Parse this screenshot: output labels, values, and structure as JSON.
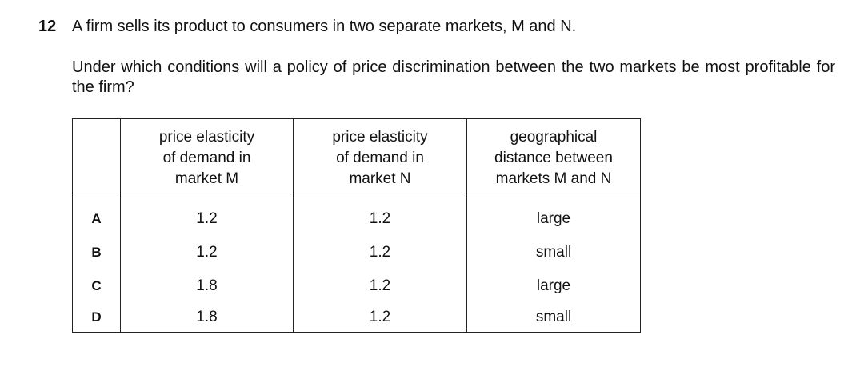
{
  "question": {
    "number": "12",
    "stem": "A firm sells its product to consumers in two separate markets, M and N.",
    "prompt": "Under which conditions will a policy of price discrimination between the two markets be most profitable for the firm?"
  },
  "table": {
    "headers": [
      [
        "price elasticity",
        "of demand in",
        "market M"
      ],
      [
        "price elasticity",
        "of demand in",
        "market N"
      ],
      [
        "geographical",
        "distance between",
        "markets M and N"
      ]
    ],
    "rows": [
      [
        "A",
        1.2,
        1.2,
        "large"
      ],
      [
        "B",
        1.2,
        1.2,
        "small"
      ],
      [
        "C",
        1.8,
        1.2,
        "large"
      ],
      [
        "D",
        1.8,
        1.2,
        "small"
      ]
    ]
  }
}
